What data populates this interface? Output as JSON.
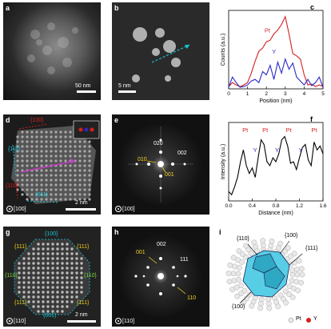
{
  "panels": {
    "a": {
      "label": "a",
      "scalebar": "50 nm"
    },
    "b": {
      "label": "b",
      "scalebar": "5 nm"
    },
    "c": {
      "label": "c"
    },
    "d": {
      "label": "d",
      "zone": "[100]",
      "scalebar": "2 nm",
      "facets": [
        "{100}",
        "{111}",
        "{110}",
        "{011}"
      ]
    },
    "e": {
      "label": "e",
      "zone": "[100]",
      "spots": [
        "020",
        "002",
        "010",
        "001"
      ]
    },
    "f": {
      "label": "f"
    },
    "g": {
      "label": "g",
      "zone": "[110]",
      "scalebar": "2 nm",
      "facets": [
        "{100}",
        "{111}",
        "{111}",
        "{110}",
        "{110}",
        "{111}",
        "{111}",
        "{001}"
      ]
    },
    "h": {
      "label": "h",
      "zone": "[110]",
      "spots": [
        "002",
        "001",
        "111",
        "110"
      ]
    },
    "i": {
      "label": "i",
      "facets": [
        "{110}",
        "{100}",
        "{111}",
        "{100}"
      ],
      "legend": [
        {
          "name": "Pt",
          "color": "#e8e8e8"
        },
        {
          "name": "Y",
          "color": "#d42020"
        }
      ]
    }
  },
  "chart_data": [
    {
      "type": "line",
      "panel": "c",
      "xlabel": "Position (nm)",
      "ylabel": "Counts (a.u.)",
      "xlim": [
        0,
        5
      ],
      "xticks": [
        "0",
        "1",
        "2",
        "3",
        "4",
        "5"
      ],
      "series": [
        {
          "name": "Pt",
          "color": "#d42020",
          "x": [
            0,
            0.2,
            0.4,
            0.6,
            0.8,
            1.0,
            1.2,
            1.4,
            1.6,
            1.8,
            2.0,
            2.2,
            2.4,
            2.6,
            2.8,
            3.0,
            3.2,
            3.4,
            3.6,
            3.8,
            4.0,
            4.2,
            4.4,
            4.6,
            4.8,
            5.0
          ],
          "y": [
            0.03,
            0.08,
            0.05,
            0.03,
            0.05,
            0.08,
            0.2,
            0.35,
            0.48,
            0.52,
            0.6,
            0.62,
            0.7,
            0.75,
            0.82,
            0.92,
            0.7,
            0.45,
            0.42,
            0.38,
            0.18,
            0.05,
            0.06,
            0.03,
            0.05,
            0.03
          ]
        },
        {
          "name": "Y",
          "color": "#2a2ac8",
          "x": [
            0,
            0.2,
            0.4,
            0.6,
            0.8,
            1.0,
            1.2,
            1.4,
            1.6,
            1.8,
            2.0,
            2.2,
            2.4,
            2.6,
            2.8,
            3.0,
            3.2,
            3.4,
            3.6,
            3.8,
            4.0,
            4.2,
            4.4,
            4.6,
            4.8,
            5.0
          ],
          "y": [
            0.02,
            0.15,
            0.08,
            0.02,
            0.03,
            0.05,
            0.1,
            0.12,
            0.08,
            0.22,
            0.18,
            0.3,
            0.12,
            0.34,
            0.2,
            0.38,
            0.25,
            0.33,
            0.15,
            0.1,
            0.05,
            0.12,
            0.04,
            0.08,
            0.15,
            0.02
          ]
        }
      ]
    },
    {
      "type": "line",
      "panel": "f",
      "xlabel": "Distance (nm)",
      "ylabel": "Intensity (a.u.)",
      "xlim": [
        0,
        1.6
      ],
      "xticks": [
        "0.0",
        "0.4",
        "0.8",
        "1.2",
        "1.6"
      ],
      "annotations": [
        {
          "text": "Pt",
          "x": 0.28,
          "color": "#d42020"
        },
        {
          "text": "Y",
          "x": 0.45,
          "color": "#2a2ac8"
        },
        {
          "text": "Pt",
          "x": 0.62,
          "color": "#d42020"
        },
        {
          "text": "Y",
          "x": 0.82,
          "color": "#2a2ac8"
        },
        {
          "text": "Pt",
          "x": 1.02,
          "color": "#d42020"
        },
        {
          "text": "Y",
          "x": 1.22,
          "color": "#2a2ac8"
        },
        {
          "text": "Pt",
          "x": 1.45,
          "color": "#d42020"
        }
      ],
      "series": [
        {
          "color": "#000000",
          "x": [
            0,
            0.05,
            0.1,
            0.15,
            0.2,
            0.25,
            0.3,
            0.35,
            0.4,
            0.45,
            0.5,
            0.55,
            0.6,
            0.65,
            0.7,
            0.75,
            0.8,
            0.85,
            0.9,
            0.95,
            1.0,
            1.05,
            1.1,
            1.15,
            1.2,
            1.25,
            1.3,
            1.35,
            1.4,
            1.45,
            1.5,
            1.55,
            1.6
          ],
          "y": [
            0.12,
            0.08,
            0.18,
            0.3,
            0.5,
            0.65,
            0.45,
            0.35,
            0.42,
            0.3,
            0.55,
            0.78,
            0.72,
            0.5,
            0.45,
            0.55,
            0.5,
            0.6,
            0.78,
            0.82,
            0.7,
            0.48,
            0.5,
            0.4,
            0.55,
            0.68,
            0.72,
            0.52,
            0.45,
            0.75,
            0.65,
            0.7,
            0.6
          ]
        }
      ]
    }
  ]
}
